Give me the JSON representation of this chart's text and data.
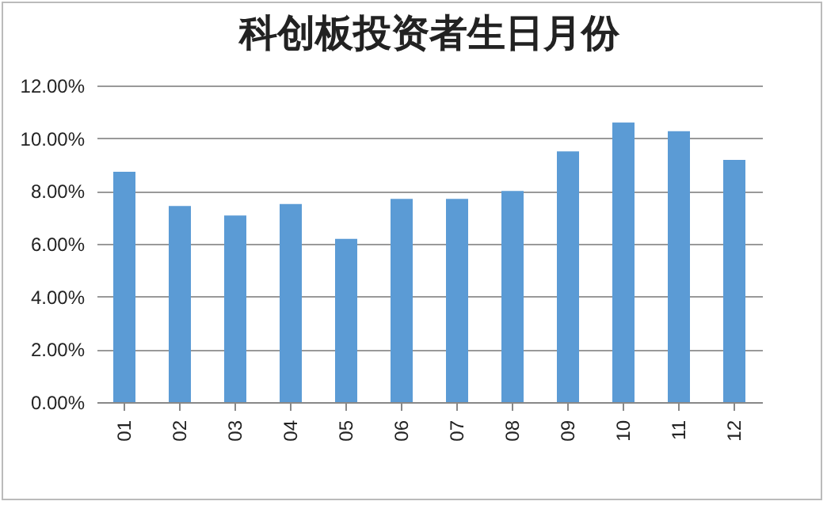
{
  "chart_data": {
    "type": "bar",
    "title": "科创板投资者生日月份",
    "categories": [
      "01",
      "02",
      "03",
      "04",
      "05",
      "06",
      "07",
      "08",
      "09",
      "10",
      "11",
      "12"
    ],
    "values": [
      8.73,
      7.43,
      7.07,
      7.51,
      6.19,
      7.7,
      7.7,
      8.0,
      9.5,
      10.6,
      10.27,
      9.18
    ],
    "color": "#5b9bd5",
    "ylim": [
      0,
      12
    ],
    "yticks": [
      {
        "value": 0,
        "label": "0.00%"
      },
      {
        "value": 2,
        "label": "2.00%"
      },
      {
        "value": 4,
        "label": "4.00%"
      },
      {
        "value": 6,
        "label": "6.00%"
      },
      {
        "value": 8,
        "label": "8.00%"
      },
      {
        "value": 10,
        "label": "10.00%"
      },
      {
        "value": 12,
        "label": "12.00%"
      }
    ],
    "grid": "y"
  }
}
